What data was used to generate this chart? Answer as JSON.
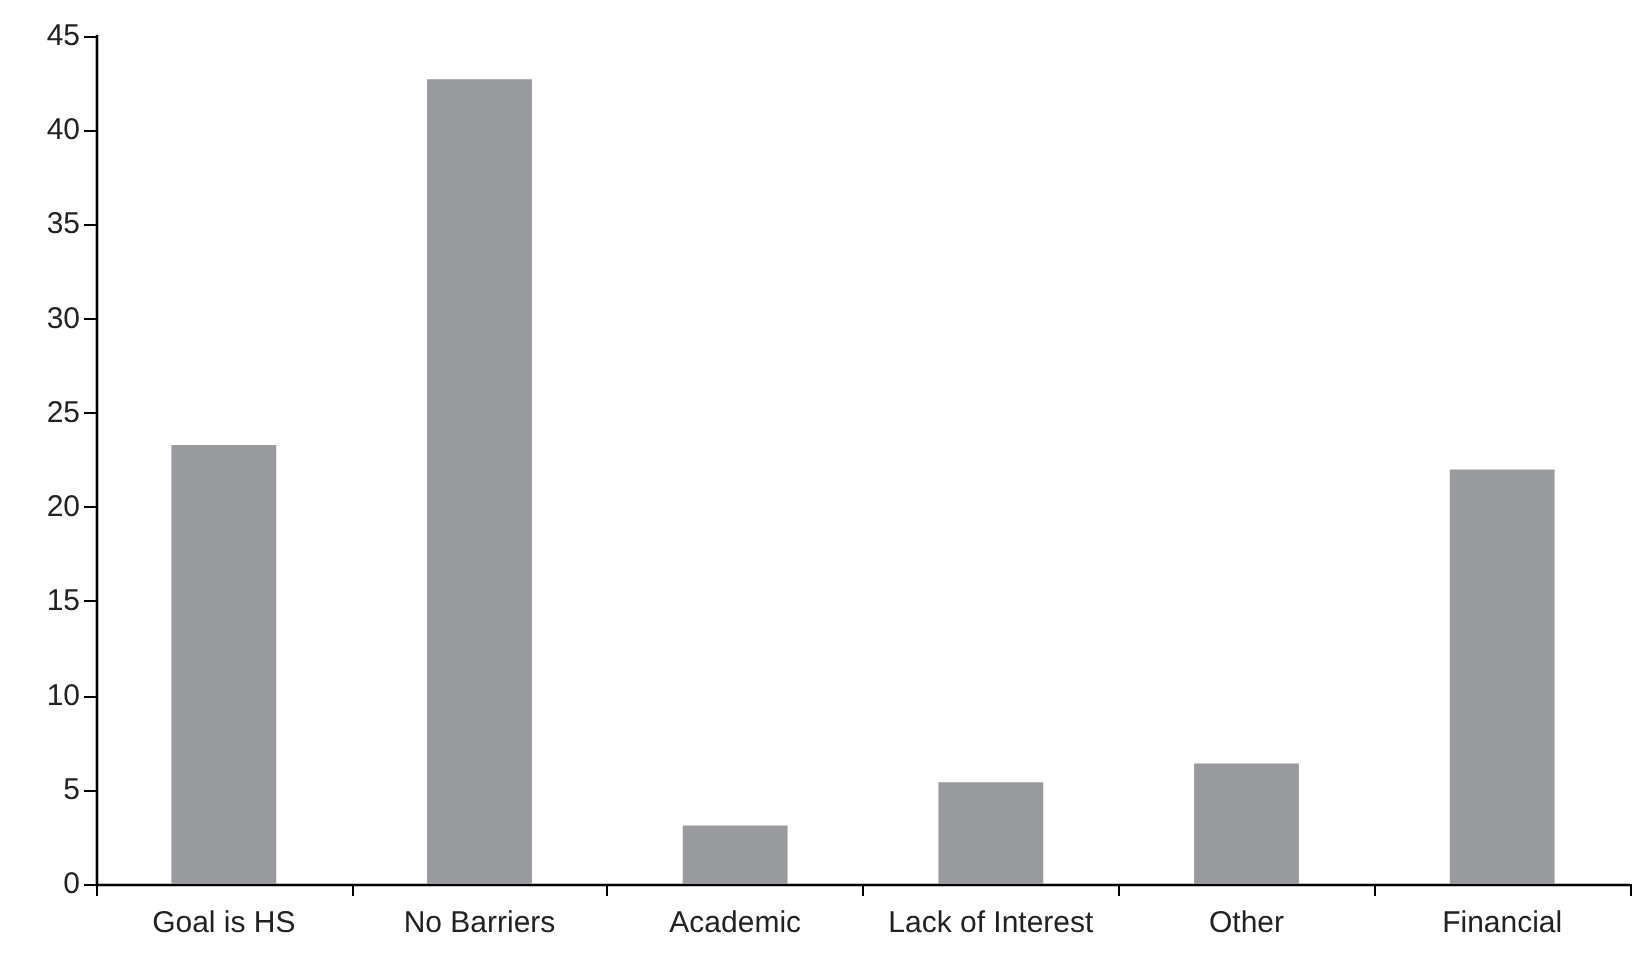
{
  "chart_data": {
    "type": "bar",
    "categories": [
      "Goal is HS",
      "No Barriers",
      "Academic",
      "Lack of Interest",
      "Other",
      "Financial"
    ],
    "values": [
      23.3,
      42.7,
      3.1,
      5.4,
      6.4,
      22.0
    ],
    "color": "#999a9e",
    "ylim": [
      0,
      45
    ],
    "yticks": [
      0,
      5,
      10,
      15,
      20,
      25,
      30,
      35,
      40,
      45
    ],
    "grid": false
  }
}
